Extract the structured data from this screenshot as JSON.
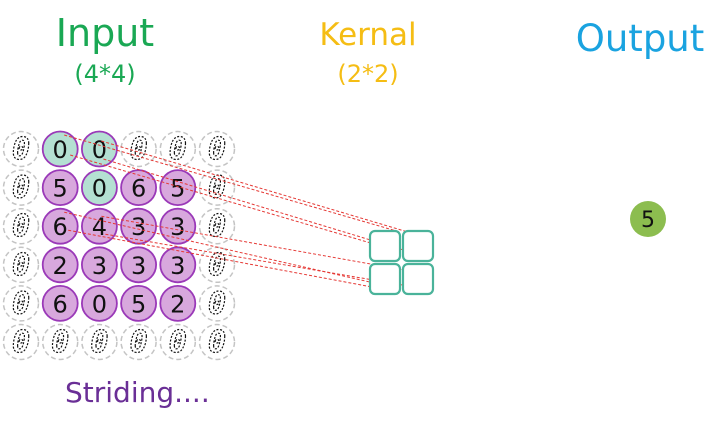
{
  "input": {
    "title": "Input",
    "size": "(4*4)",
    "padding_value": "0",
    "matrix": [
      [
        "0",
        "0",
        "",
        ""
      ],
      [
        "5",
        "0",
        "6",
        "5"
      ],
      [
        "6",
        "4",
        "3",
        "3"
      ],
      [
        "2",
        "3",
        "3",
        "3"
      ],
      [
        "6",
        "0",
        "5",
        "2"
      ]
    ]
  },
  "kernel": {
    "title": "Kernal",
    "size": "(2*2)",
    "rows": 2,
    "cols": 2
  },
  "output": {
    "title": "Output",
    "value": "5"
  },
  "caption": "Striding....",
  "colors": {
    "input_label": "#1aa854",
    "kernel_label": "#f5bd14",
    "output_label": "#1aa3e0",
    "caption": "#6a2f96",
    "cell_fill": "#d8a8dd",
    "cell_stroke": "#9a39b8",
    "window_fill": "#b4e0d2",
    "kernel_stroke": "#4ab39a",
    "pad_stroke": "#c4c4c4",
    "connector": "#e53935",
    "output_fill": "#8cbd4f"
  }
}
